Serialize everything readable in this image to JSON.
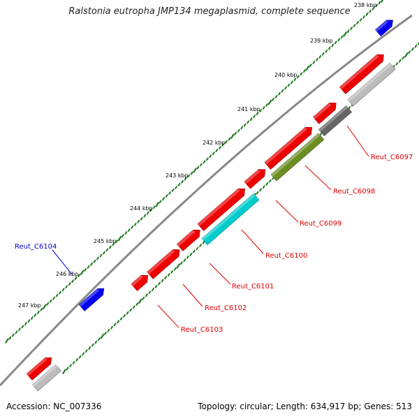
{
  "title": "Ralstonia eutropha JMP134 megaplasmid, complete sequence",
  "footer": {
    "accession": "Accession: NC_007336",
    "summary": "Topology: circular; Length: 634,917 bp; Genes: 513"
  },
  "ticks": [
    "238 kbp",
    "239 kbp",
    "240 kbp",
    "241 kbp",
    "242 kbp",
    "243 kbp",
    "244 kbp",
    "245 kbp",
    "246 kbp",
    "247 kbp"
  ],
  "genes": [
    {
      "label": "Reut_C6097",
      "color": "#dd0000"
    },
    {
      "label": "Reut_C6098",
      "color": "#dd0000"
    },
    {
      "label": "Reut_C6099",
      "color": "#dd0000"
    },
    {
      "label": "Reut_C6100",
      "color": "#dd0000"
    },
    {
      "label": "Reut_C6101",
      "color": "#dd0000"
    },
    {
      "label": "Reut_C6102",
      "color": "#dd0000"
    },
    {
      "label": "Reut_C6103",
      "color": "#dd0000"
    },
    {
      "label": "Reut_C6104",
      "color": "#0000cc"
    }
  ],
  "colors": {
    "forward_strand_gene": "#ee0000",
    "reverse_strand_gene": "#0000ee",
    "backbone": "#888888",
    "tick": "#1a7a1a",
    "cds_gray": "#bbbbbb",
    "cds_dark": "#666666",
    "cds_olive": "#6b8e23",
    "cds_cyan": "#00cccc"
  }
}
